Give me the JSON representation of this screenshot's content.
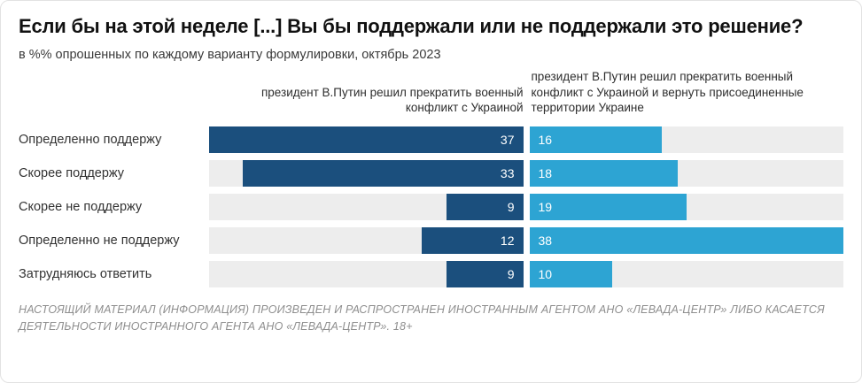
{
  "disclaimer": "НАСТОЯЩИЙ МАТЕРИАЛ (ИНФОРМАЦИЯ) ПРОИЗВЕДЕН И РАСПРОСТРАНЕН ИНОСТРАННЫМ АГЕНТОМ АНО «ЛЕВАДА-ЦЕНТР» ЛИБО КАСАЕТСЯ ДЕЯТЕЛЬНОСТИ ИНОСТРАННОГО АГЕНТА АНО «ЛЕВАДА-ЦЕНТР». 18+",
  "chart_data": {
    "type": "bar",
    "orientation": "horizontal",
    "title": "Если бы на этой неделе [...] Вы бы поддержали или не поддержали это решение?",
    "subtitle": "в %% опрошенных по каждому варианту формулировки, октябрь 2023",
    "unit": "%",
    "track_color": "#ededed",
    "value_label_color": "#ffffff",
    "categories": [
      "Определенно поддержу",
      "Скорее поддержу",
      "Скорее не поддержу",
      "Определенно не поддержу",
      "Затрудняюсь ответить"
    ],
    "series": [
      {
        "name": "президент В.Путин решил прекратить военный конфликт с Украиной",
        "values": [
          37,
          33,
          9,
          12,
          9
        ],
        "color": "#1b4f7d",
        "bar_alignment": "right"
      },
      {
        "name": "президент В.Путин решил прекратить военный конфликт с Украиной и вернуть присоединенные территории Украине",
        "values": [
          16,
          18,
          19,
          38,
          10
        ],
        "color": "#2da4d3",
        "bar_alignment": "left"
      }
    ]
  }
}
